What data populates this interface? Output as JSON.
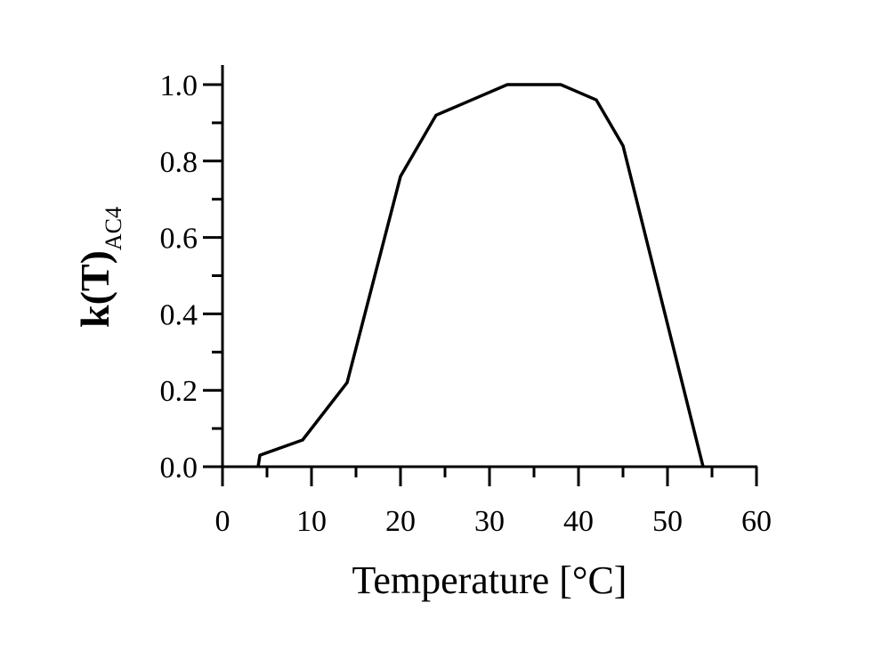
{
  "chart_data": {
    "type": "line",
    "title": "",
    "xlabel": "Temperature [°C]",
    "ylabel": {
      "main": "k(T)",
      "subscript": "AC4"
    },
    "xlim": [
      0,
      60
    ],
    "ylim": [
      0,
      1.05
    ],
    "xticks": [
      "0",
      "10",
      "20",
      "30",
      "40",
      "50",
      "60"
    ],
    "yticks": [
      "0.0",
      "0.2",
      "0.4",
      "0.6",
      "0.8",
      "1.0"
    ],
    "grid": false,
    "series": [
      {
        "x": [
          4,
          4.2,
          9,
          14,
          20,
          24,
          28,
          32,
          38,
          42,
          45,
          54
        ],
        "y": [
          0.0,
          0.03,
          0.07,
          0.22,
          0.76,
          0.92,
          0.96,
          1.0,
          1.0,
          0.96,
          0.84,
          0.0
        ]
      }
    ],
    "colors": {
      "line": "#000000",
      "axis": "#000000"
    }
  }
}
